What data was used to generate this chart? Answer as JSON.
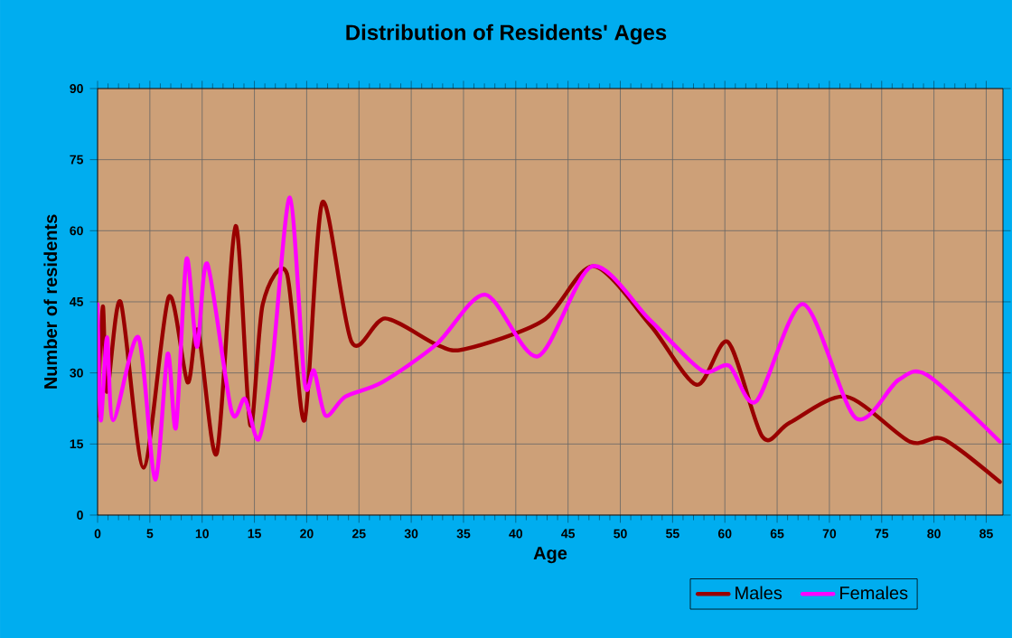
{
  "chart_data": {
    "type": "line",
    "title": "Distribution of Residents' Ages",
    "xlabel": "Age",
    "ylabel": "Number of residents",
    "xlim": [
      0,
      86.6
    ],
    "ylim": [
      0,
      90
    ],
    "xticks": [
      0,
      5,
      10,
      15,
      20,
      25,
      30,
      35,
      40,
      45,
      50,
      55,
      60,
      65,
      70,
      75,
      80,
      85
    ],
    "yticks": [
      0,
      15,
      30,
      45,
      60,
      75,
      90
    ],
    "grid": true,
    "legend": "bottom right",
    "marker": "none",
    "line_style": "solid",
    "series": [
      {
        "name": "Males",
        "color": "#990000",
        "x": [
          0,
          0.5,
          0.9,
          2.2,
          4.4,
          6.8,
          8.6,
          9.6,
          11.4,
          13.2,
          14.6,
          15.8,
          18.1,
          19.8,
          21.5,
          24.3,
          27.5,
          32.4,
          35.1,
          42.6,
          47.4,
          52.9,
          57.3,
          60.3,
          63.6,
          66.2,
          71.6,
          77.7,
          80.9,
          86.3
        ],
        "values": [
          21,
          44,
          26,
          45,
          10,
          46,
          28,
          39,
          13,
          61,
          19,
          44.5,
          51,
          20,
          66,
          36.5,
          41.5,
          36,
          35,
          41,
          52.5,
          40,
          27.5,
          36.5,
          16.5,
          19.5,
          25,
          15.5,
          16,
          7
        ]
      },
      {
        "name": "Females",
        "color": "#ff00ff",
        "x": [
          0,
          0.3,
          0.9,
          1.5,
          3.9,
          5.5,
          6.7,
          7.5,
          8.5,
          9.5,
          10.5,
          12.8,
          14.1,
          15.4,
          16.7,
          18.4,
          19.8,
          20.7,
          21.8,
          23.7,
          27.2,
          32.4,
          37.1,
          42.1,
          47.3,
          52.9,
          57.8,
          60.4,
          63,
          67.5,
          72.5,
          76.6,
          79.4,
          86.3
        ],
        "values": [
          44.5,
          20,
          37.5,
          20,
          37.5,
          7.5,
          34,
          18.5,
          54,
          35.5,
          53,
          22,
          24.5,
          16,
          32,
          67,
          28,
          30.5,
          21,
          25,
          28,
          36,
          46.5,
          33.5,
          52.5,
          41,
          30.5,
          31.5,
          24,
          44.5,
          20.5,
          28.5,
          29.5,
          15.5
        ]
      }
    ]
  }
}
